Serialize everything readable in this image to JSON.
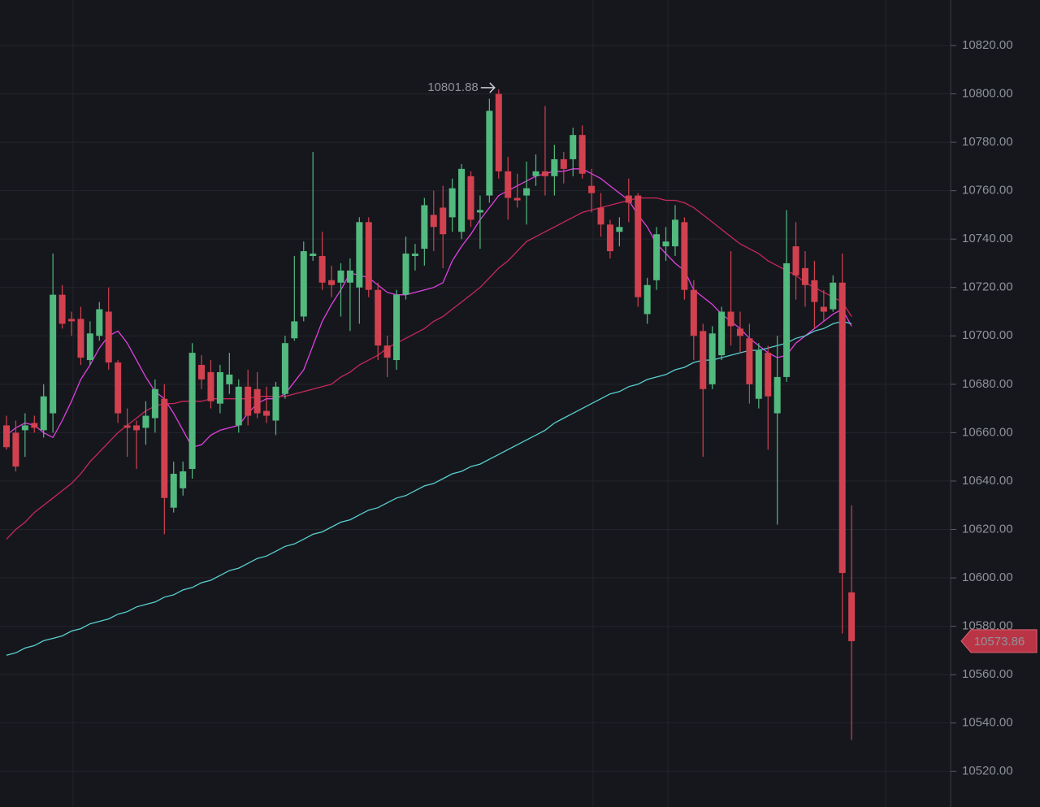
{
  "chart_data": {
    "type": "candlestick",
    "open": [
      10663,
      10660,
      10661,
      10664,
      10661,
      10668,
      10717,
      10707,
      10707,
      10690,
      10700,
      10710,
      10689,
      10663,
      10663,
      10662,
      10666,
      10674,
      10629,
      10637,
      10645,
      10688,
      10685,
      10672,
      10680,
      10663,
      10679,
      10678,
      10669,
      10665,
      10676,
      10699,
      10708,
      10733,
      10733,
      10723,
      10722,
      10722,
      10720,
      10747,
      10719,
      10696,
      10690,
      10717,
      10733,
      10736,
      10750,
      10753,
      10749,
      10743,
      10766,
      10751,
      10758,
      10800,
      10768,
      10757,
      10758,
      10766,
      10768,
      10766,
      10773,
      10773,
      10783,
      10762,
      10753,
      10746,
      10743,
      10758,
      10758,
      10709,
      10723,
      10737,
      10737,
      10747,
      10719,
      10702,
      10680,
      10692,
      10710,
      10703,
      10699,
      10674,
      10693,
      10668,
      10683,
      10737,
      10728,
      10723,
      10712,
      10711,
      10722,
      10594
    ],
    "high": [
      10667,
      10665,
      10668,
      10667,
      10680,
      10734,
      10721,
      10710,
      10712,
      10706,
      10714,
      10720,
      10690,
      10670,
      10665,
      10673,
      10682,
      10680,
      10648,
      10648,
      10697,
      10692,
      10690,
      10688,
      10693,
      10682,
      10686,
      10685,
      10679,
      10681,
      10700,
      10733,
      10739,
      10776,
      10743,
      10729,
      10730,
      10732,
      10749,
      10749,
      10722,
      10700,
      10719,
      10741,
      10738,
      10757,
      10760,
      10762,
      10765,
      10771,
      10768,
      10758,
      10798,
      10801.88,
      10774,
      10767,
      10772,
      10775,
      10795,
      10779,
      10776,
      10786,
      10787,
      10769,
      10759,
      10748,
      10749,
      10765,
      10759,
      10724,
      10745,
      10745,
      10754,
      10749,
      10723,
      10705,
      10704,
      10712,
      10735,
      10710,
      10705,
      10697,
      10696,
      10700,
      10752,
      10747,
      10735,
      10731,
      10719,
      10725,
      10734,
      10630
    ],
    "low": [
      10653,
      10644,
      10650,
      10660,
      10658,
      10660,
      10703,
      10700,
      10688,
      10688,
      10698,
      10686,
      10664,
      10650,
      10645,
      10655,
      10660,
      10618,
      10627,
      10634,
      10641,
      10678,
      10670,
      10668,
      10676,
      10660,
      10663,
      10666,
      10664,
      10659,
      10674,
      10698,
      10706,
      10731,
      10719,
      10716,
      10708,
      10702,
      10705,
      10716,
      10690,
      10683,
      10686,
      10715,
      10727,
      10729,
      10735,
      10728,
      10743,
      10740,
      10745,
      10736,
      10755,
      10765,
      10748,
      10753,
      10746,
      10762,
      10758,
      10758,
      10763,
      10766,
      10765,
      10751,
      10741,
      10732,
      10737,
      10747,
      10712,
      10705,
      10719,
      10731,
      10733,
      10715,
      10690,
      10650,
      10678,
      10690,
      10696,
      10693,
      10672,
      10670,
      10653,
      10622,
      10681,
      10715,
      10712,
      10703,
      10706,
      10710,
      10577,
      10533
    ],
    "close": [
      10654,
      10646,
      10663,
      10662,
      10675,
      10717,
      10705,
      10706,
      10691,
      10701,
      10711,
      10689,
      10668,
      10662,
      10661,
      10667,
      10678,
      10633,
      10643,
      10644,
      10693,
      10682,
      10673,
      10685,
      10684,
      10679,
      10667,
      10668,
      10667,
      10679,
      10697,
      10706,
      10735,
      10734,
      10722,
      10721,
      10727,
      10727,
      10747,
      10719,
      10696,
      10691,
      10717,
      10734,
      10734,
      10754,
      10745,
      10742,
      10761,
      10769,
      10748,
      10752,
      10793,
      10768,
      10757,
      10756,
      10761,
      10768,
      10766,
      10773,
      10769,
      10783,
      10767,
      10759,
      10746,
      10735,
      10745,
      10755,
      10716,
      10721,
      10742,
      10739,
      10748,
      10719,
      10700,
      10678,
      10701,
      10710,
      10704,
      10700,
      10680,
      10694,
      10675,
      10683,
      10730,
      10725,
      10721,
      10714,
      10710,
      10722,
      10602,
      10573.86
    ],
    "up_color": "#52b97f",
    "down_color": "#d2414f",
    "series": [
      {
        "color": "#e040e0",
        "values": [
          10659,
          10662,
          10664,
          10663,
          10660,
          10658,
          10665,
          10673,
          10682,
          10688,
          10695,
          10700,
          10702,
          10697,
          10690,
          10683,
          10677,
          10674,
          10668,
          10661,
          10654,
          10655,
          10659,
          10661,
          10662,
          10663,
          10668,
          10672,
          10674,
          10674,
          10676,
          10681,
          10686,
          10696,
          10706,
          10713,
          10719,
          10726,
          10725,
          10724,
          10721,
          10718,
          10717,
          10717,
          10718,
          10719,
          10720,
          10722,
          10731,
          10737,
          10742,
          10748,
          10753,
          10758,
          10760,
          10762,
          10764,
          10766,
          10767,
          10768,
          10768,
          10769,
          10769,
          10767,
          10765,
          10762,
          10759,
          10756,
          10750,
          10745,
          10738,
          10734,
          10730,
          10727,
          10719,
          10716,
          10713,
          10709,
          10706,
          10703,
          10699,
          10696,
          10693,
          10691,
          10692,
          10697,
          10700,
          10703,
          10706,
          10709,
          10711,
          10704
        ]
      },
      {
        "color": "#c8285a",
        "values": [
          10616,
          10620,
          10623,
          10627,
          10630,
          10633,
          10636,
          10639,
          10643,
          10648,
          10652,
          10656,
          10660,
          10663,
          10666,
          10669,
          10671,
          10672,
          10672,
          10673,
          10673,
          10673,
          10674,
          10674,
          10674,
          10674,
          10674,
          10675,
          10675,
          10675,
          10675,
          10676,
          10677,
          10678,
          10679,
          10680,
          10683,
          10685,
          10688,
          10690,
          10692,
          10695,
          10697,
          10699,
          10701,
          10703,
          10706,
          10708,
          10711,
          10714,
          10717,
          10720,
          10724,
          10728,
          10731,
          10735,
          10739,
          10741,
          10743,
          10745,
          10747,
          10749,
          10751,
          10752,
          10753,
          10754,
          10755,
          10756,
          10757,
          10757,
          10757,
          10756,
          10756,
          10755,
          10753,
          10750,
          10747,
          10744,
          10741,
          10738,
          10736,
          10734,
          10731,
          10729,
          10727,
          10725,
          10722,
          10720,
          10718,
          10716,
          10714,
          10708
        ]
      },
      {
        "color": "#58d0d0",
        "values": [
          10568,
          10569,
          10571,
          10572,
          10574,
          10575,
          10576,
          10578,
          10579,
          10581,
          10582,
          10583,
          10585,
          10586,
          10588,
          10589,
          10590,
          10592,
          10593,
          10595,
          10596,
          10598,
          10599,
          10601,
          10603,
          10604,
          10606,
          10608,
          10609,
          10611,
          10613,
          10614,
          10616,
          10618,
          10619,
          10621,
          10623,
          10624,
          10626,
          10628,
          10629,
          10631,
          10633,
          10634,
          10636,
          10638,
          10639,
          10641,
          10643,
          10644,
          10646,
          10647,
          10649,
          10651,
          10653,
          10655,
          10657,
          10659,
          10661,
          10664,
          10666,
          10668,
          10670,
          10672,
          10674,
          10676,
          10677,
          10679,
          10680,
          10682,
          10683,
          10684,
          10686,
          10687,
          10689,
          10690,
          10690,
          10691,
          10692,
          10693,
          10694,
          10694,
          10695,
          10696,
          10697,
          10699,
          10700,
          10702,
          10703,
          10705,
          10706,
          10705
        ]
      }
    ],
    "ylim": [
      10505.3,
      10838.8
    ],
    "yticks": [
      {
        "value": 10520,
        "label": "10520.00"
      },
      {
        "value": 10540,
        "label": "10540.00"
      },
      {
        "value": 10560,
        "label": "10560.00"
      },
      {
        "value": 10580,
        "label": "10580.00"
      },
      {
        "value": 10600,
        "label": "10600.00"
      },
      {
        "value": 10620,
        "label": "10620.00"
      },
      {
        "value": 10640,
        "label": "10640.00"
      },
      {
        "value": 10660,
        "label": "10660.00"
      },
      {
        "value": 10680,
        "label": "10680.00"
      },
      {
        "value": 10700,
        "label": "10700.00"
      },
      {
        "value": 10720,
        "label": "10720.00"
      },
      {
        "value": 10740,
        "label": "10740.00"
      },
      {
        "value": 10760,
        "label": "10760.00"
      },
      {
        "value": 10780,
        "label": "10780.00"
      },
      {
        "value": 10800,
        "label": "10800.00"
      },
      {
        "value": 10820,
        "label": "10820.00"
      }
    ],
    "grid": true
  }
}
